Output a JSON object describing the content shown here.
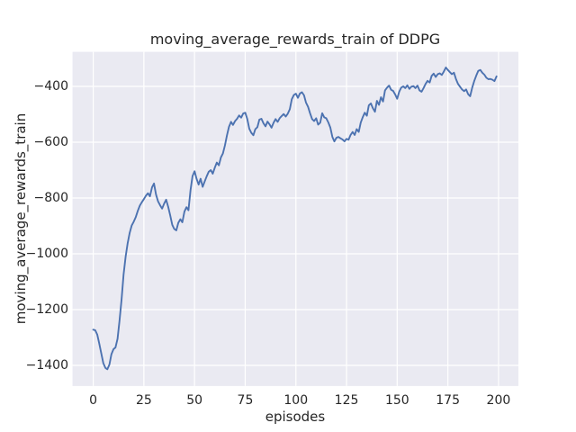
{
  "chart_data": {
    "type": "line",
    "title": "moving_average_rewards_train of DDPG",
    "xlabel": "episodes",
    "ylabel": "moving_average_rewards_train",
    "xlim": [
      -10.2,
      209.8
    ],
    "ylim": [
      -1474,
      -276
    ],
    "xticks": [
      0,
      25,
      50,
      75,
      100,
      125,
      150,
      175,
      200
    ],
    "xtick_labels": [
      "0",
      "25",
      "50",
      "75",
      "100",
      "125",
      "150",
      "175",
      "200"
    ],
    "yticks": [
      -400,
      -600,
      -800,
      -1000,
      -1200,
      -1400
    ],
    "ytick_labels": [
      "−400",
      "−600",
      "−800",
      "−1000",
      "−1200",
      "−1400"
    ],
    "grid": true,
    "legend": false,
    "styles": {
      "figure_background": "#ffffff",
      "axes_background": "#eaeaf2",
      "grid_color": "#ffffff",
      "text_color": "#262626",
      "line_color": "#4c72b0"
    },
    "series": [
      {
        "name": "moving_average_rewards_train",
        "color": "#4c72b0",
        "x": [
          0,
          1,
          2,
          3,
          4,
          5,
          6,
          7,
          8,
          9,
          10,
          11,
          12,
          13,
          14,
          15,
          16,
          17,
          18,
          19,
          20,
          21,
          22,
          23,
          24,
          25,
          26,
          27,
          28,
          29,
          30,
          31,
          32,
          33,
          34,
          35,
          36,
          37,
          38,
          39,
          40,
          41,
          42,
          43,
          44,
          45,
          46,
          47,
          48,
          49,
          50,
          51,
          52,
          53,
          54,
          55,
          56,
          57,
          58,
          59,
          60,
          61,
          62,
          63,
          64,
          65,
          66,
          67,
          68,
          69,
          70,
          71,
          72,
          73,
          74,
          75,
          76,
          77,
          78,
          79,
          80,
          81,
          82,
          83,
          84,
          85,
          86,
          87,
          88,
          89,
          90,
          91,
          92,
          93,
          94,
          95,
          96,
          97,
          98,
          99,
          100,
          101,
          102,
          103,
          104,
          105,
          106,
          107,
          108,
          109,
          110,
          111,
          112,
          113,
          114,
          115,
          116,
          117,
          118,
          119,
          120,
          121,
          122,
          123,
          124,
          125,
          126,
          127,
          128,
          129,
          130,
          131,
          132,
          133,
          134,
          135,
          136,
          137,
          138,
          139,
          140,
          141,
          142,
          143,
          144,
          145,
          146,
          147,
          148,
          149,
          150,
          151,
          152,
          153,
          154,
          155,
          156,
          157,
          158,
          159,
          160,
          161,
          162,
          163,
          164,
          165,
          166,
          167,
          168,
          169,
          170,
          171,
          172,
          173,
          174,
          175,
          176,
          177,
          178,
          179,
          180,
          181,
          182,
          183,
          184,
          185,
          186,
          187,
          188,
          189,
          190,
          191,
          192,
          193,
          194,
          195,
          196,
          197,
          198,
          199
        ],
        "y": [
          -1272,
          -1274,
          -1290,
          -1322,
          -1358,
          -1392,
          -1409,
          -1414,
          -1397,
          -1360,
          -1342,
          -1336,
          -1305,
          -1240,
          -1163,
          -1075,
          -1010,
          -963,
          -925,
          -898,
          -885,
          -868,
          -846,
          -827,
          -815,
          -804,
          -792,
          -783,
          -794,
          -762,
          -748,
          -788,
          -812,
          -826,
          -838,
          -820,
          -806,
          -832,
          -862,
          -896,
          -911,
          -916,
          -889,
          -876,
          -887,
          -849,
          -833,
          -844,
          -772,
          -722,
          -704,
          -731,
          -752,
          -731,
          -760,
          -741,
          -722,
          -706,
          -700,
          -713,
          -691,
          -673,
          -683,
          -655,
          -640,
          -612,
          -575,
          -545,
          -527,
          -538,
          -524,
          -516,
          -504,
          -512,
          -497,
          -494,
          -516,
          -552,
          -566,
          -575,
          -553,
          -546,
          -519,
          -516,
          -532,
          -543,
          -526,
          -536,
          -548,
          -530,
          -517,
          -527,
          -514,
          -506,
          -499,
          -508,
          -498,
          -482,
          -446,
          -431,
          -426,
          -441,
          -425,
          -421,
          -432,
          -458,
          -473,
          -496,
          -517,
          -524,
          -514,
          -537,
          -530,
          -496,
          -511,
          -514,
          -529,
          -547,
          -581,
          -597,
          -584,
          -581,
          -586,
          -590,
          -597,
          -588,
          -591,
          -574,
          -563,
          -574,
          -553,
          -563,
          -530,
          -510,
          -494,
          -505,
          -468,
          -461,
          -478,
          -491,
          -452,
          -466,
          -439,
          -454,
          -414,
          -404,
          -397,
          -412,
          -416,
          -429,
          -444,
          -419,
          -404,
          -400,
          -406,
          -396,
          -409,
          -401,
          -399,
          -406,
          -397,
          -414,
          -419,
          -406,
          -391,
          -380,
          -386,
          -362,
          -354,
          -366,
          -356,
          -353,
          -359,
          -347,
          -332,
          -341,
          -349,
          -356,
          -351,
          -373,
          -391,
          -401,
          -411,
          -417,
          -411,
          -428,
          -435,
          -404,
          -381,
          -361,
          -344,
          -341,
          -351,
          -358,
          -369,
          -374,
          -373,
          -376,
          -381,
          -364
        ]
      }
    ]
  }
}
